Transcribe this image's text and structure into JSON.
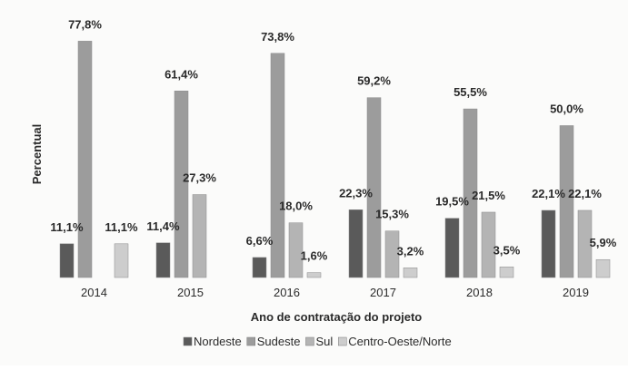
{
  "chart_data": {
    "type": "bar",
    "title": "",
    "xlabel": "Ano de contratação do projeto",
    "ylabel": "Percentual",
    "categories": [
      "2014",
      "2015",
      "2016",
      "2017",
      "2018",
      "2019"
    ],
    "ylim": [
      0,
      80
    ],
    "grid": false,
    "legend_position": "bottom",
    "series": [
      {
        "name": "Nordeste",
        "color": "#5a5a5a",
        "values": [
          11.1,
          11.4,
          6.6,
          22.3,
          19.5,
          22.1
        ],
        "labels": [
          "11,1%",
          "11,4%",
          "6,6%",
          "22,3%",
          "19,5%",
          "22,1%"
        ]
      },
      {
        "name": "Sudeste",
        "color": "#9c9c9c",
        "values": [
          77.8,
          61.4,
          73.8,
          59.2,
          55.5,
          50.0
        ],
        "labels": [
          "77,8%",
          "61,4%",
          "73,8%",
          "59,2%",
          "55,5%",
          "50,0%"
        ]
      },
      {
        "name": "Sul",
        "color": "#b4b4b4",
        "values": [
          null,
          27.3,
          18.0,
          15.3,
          21.5,
          22.1
        ],
        "labels": [
          "",
          "27,3%",
          "18,0%",
          "15,3%",
          "21,5%",
          "22,1%"
        ]
      },
      {
        "name": "Centro-Oeste/Norte",
        "color": "#cdcdcd",
        "values": [
          11.1,
          null,
          1.6,
          3.2,
          3.5,
          5.9
        ],
        "labels": [
          "11,1%",
          "",
          "1,6%",
          "3,2%",
          "3,5%",
          "5,9%"
        ]
      }
    ]
  }
}
